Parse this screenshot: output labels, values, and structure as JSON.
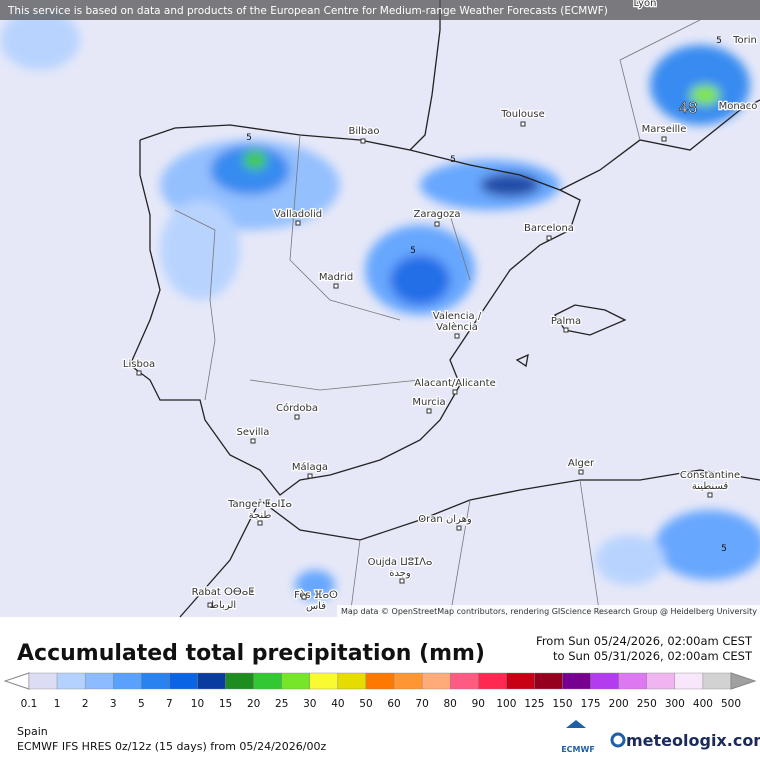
{
  "notice": "This service is based on data and products of the European Centre for Medium-range Weather Forecasts (ECMWF)",
  "cities": [
    "Lyon",
    "Torin",
    "Bilbao",
    "Toulouse",
    "Marseille",
    "Monaco",
    "Valladolid",
    "Zaragoza",
    "Barcelona",
    "Madrid",
    "Valencia /",
    "València",
    "Palma",
    "Lisboa",
    "Alacant/Alicante",
    "Murcia",
    "Córdoba",
    "Sevilla",
    "Málaga",
    "Alger",
    "Constantine",
    "قسنطينة",
    "Tanger ⵟⴰⵏⵊⴰ",
    "طنجة",
    "Oran وهران",
    "Oujda ⵡⵓⵊⴷⴰ",
    "وجدة",
    "Rabat ⵔⴱⴰⵟ",
    "الرباط",
    "Fès ⴼⴰⵙ",
    "فاس"
  ],
  "contour_labels": [
    "5",
    "5",
    "5",
    "5",
    "5",
    "48"
  ],
  "attribution": "Map data © OpenStreetMap contributors, rendering GIScience Research Group @ Heidelberg University",
  "title": "Accumulated total precipitation (mm)",
  "period": {
    "from": "From Sun 05/24/2026, 02:00am CEST",
    "to": "to Sun 05/31/2026, 02:00am CEST"
  },
  "legend": {
    "ticks": [
      0.1,
      1,
      2,
      3,
      5,
      7,
      10,
      15,
      20,
      25,
      30,
      40,
      50,
      60,
      70,
      80,
      90,
      100,
      125,
      150,
      175,
      200,
      250,
      300,
      400,
      500
    ],
    "colors": [
      "#dcdcf4",
      "#b4d2ff",
      "#8cbcff",
      "#5aa0ff",
      "#2882f0",
      "#0a64e6",
      "#0a3ca0",
      "#1e8c1e",
      "#32c832",
      "#78e628",
      "#fafa32",
      "#e6dc00",
      "#ff7800",
      "#ff9632",
      "#ffaa78",
      "#ff5a82",
      "#ff2850",
      "#c80014",
      "#96001e",
      "#780090",
      "#b43cf0",
      "#dc78f0",
      "#f0b4f0",
      "#f8e6fa",
      "#d2d2d2"
    ]
  },
  "region": "Spain",
  "model": "ECMWF IFS HRES 0z/12z (15 days) from 05/24/2026/00z",
  "logos": {
    "ecmwf": "ECMWF",
    "meteologix": "meteologix.com"
  }
}
